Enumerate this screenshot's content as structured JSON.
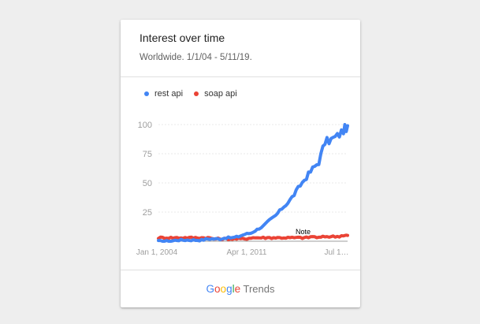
{
  "header": {
    "title": "Interest over time",
    "subtitle": "Worldwide. 1/1/04 - 5/11/19."
  },
  "footer": {
    "brand_letters": [
      {
        "char": "G",
        "color": "#4285f4"
      },
      {
        "char": "o",
        "color": "#ea4335"
      },
      {
        "char": "o",
        "color": "#fbbc05"
      },
      {
        "char": "g",
        "color": "#4285f4"
      },
      {
        "char": "l",
        "color": "#34a853"
      },
      {
        "char": "e",
        "color": "#ea4335"
      }
    ],
    "brand_suffix": "Trends"
  },
  "chart_data": {
    "type": "line",
    "title": "Interest over time",
    "subtitle": "Worldwide. 1/1/04 - 5/11/19.",
    "xlabel": "",
    "ylabel": "",
    "ylim": [
      0,
      100
    ],
    "yticks": [
      25,
      50,
      75,
      100
    ],
    "xlim": [
      "2004-01",
      "2019-05"
    ],
    "xtick_labels": [
      "Jan 1, 2004",
      "Apr 1, 2011",
      "Jul 1…"
    ],
    "grid": true,
    "legend_position": "top-left",
    "annotation": "Note",
    "x": [
      "2004-01",
      "2004-07",
      "2005-01",
      "2005-07",
      "2006-01",
      "2006-07",
      "2007-01",
      "2007-07",
      "2008-01",
      "2008-07",
      "2009-01",
      "2009-07",
      "2010-01",
      "2010-07",
      "2011-01",
      "2011-07",
      "2012-01",
      "2012-07",
      "2013-01",
      "2013-07",
      "2014-01",
      "2014-07",
      "2015-01",
      "2015-07",
      "2016-01",
      "2016-07",
      "2017-01",
      "2017-07",
      "2018-01",
      "2018-07",
      "2019-01",
      "2019-05"
    ],
    "series": [
      {
        "name": "rest api",
        "color": "#4285f4",
        "values": [
          0,
          0,
          0,
          1,
          1,
          1,
          1,
          1,
          2,
          2,
          2,
          3,
          3,
          4,
          6,
          7,
          10,
          13,
          18,
          22,
          28,
          33,
          40,
          48,
          55,
          62,
          68,
          85,
          87,
          90,
          95,
          99
        ]
      },
      {
        "name": "soap api",
        "color": "#ea4335",
        "values": [
          3,
          3,
          3,
          3,
          3,
          3,
          3,
          3,
          3,
          2,
          2,
          2,
          2,
          2,
          2,
          3,
          3,
          3,
          3,
          3,
          3,
          3,
          3,
          3,
          3,
          4,
          3,
          4,
          4,
          4,
          5,
          5
        ]
      }
    ]
  }
}
